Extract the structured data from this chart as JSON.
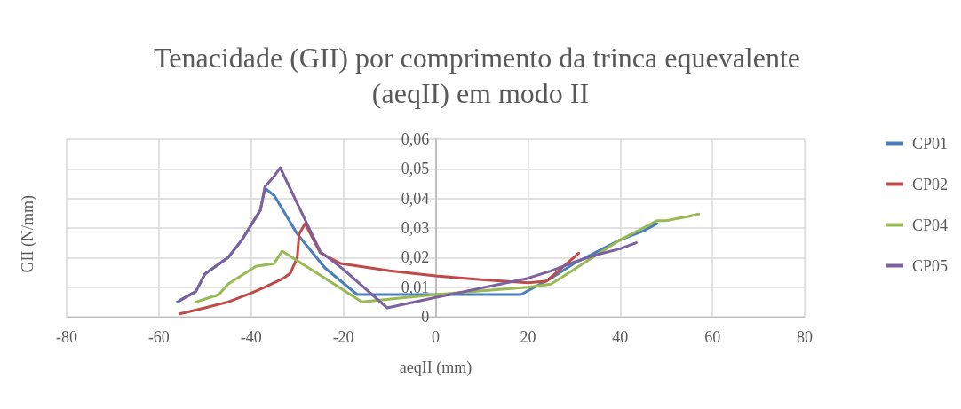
{
  "chart_data": {
    "type": "line",
    "title": "Tenacidade (GII) por comprimento da trinca equevalente (aeqII) em modo II",
    "xlabel": "aeqII (mm)",
    "ylabel": "GII (N/mm)",
    "xlim": [
      -80,
      80
    ],
    "xticks": [
      -80,
      -60,
      -40,
      -20,
      0,
      20,
      40,
      60,
      80
    ],
    "ylim": [
      0,
      0.06
    ],
    "yticks": [
      0,
      {
        "value": 0.01,
        "label": "0,01"
      },
      {
        "value": 0.02,
        "label": "0,02"
      },
      {
        "value": 0.03,
        "label": "0,03"
      },
      {
        "value": 0.04,
        "label": "0,04"
      },
      {
        "value": 0.05,
        "label": "0,05"
      },
      {
        "value": 0.06,
        "label": "0,06"
      }
    ],
    "grid": true,
    "legend": "right",
    "marker": "none",
    "line_style": "solid",
    "series": [
      {
        "name": "CP01",
        "color": "#4a7ebb",
        "x": [
          -56,
          -52,
          -50,
          -45,
          -42,
          -40,
          -38,
          -37,
          -35,
          -30,
          -24,
          -17,
          18.5,
          25,
          30,
          35,
          40,
          45,
          48
        ],
        "values": [
          0.005,
          0.0085,
          0.0145,
          0.02,
          0.026,
          0.031,
          0.036,
          0.0435,
          0.041,
          0.028,
          0.0165,
          0.0075,
          0.0075,
          0.013,
          0.018,
          0.022,
          0.026,
          0.029,
          0.0315
        ]
      },
      {
        "name": "CP02",
        "color": "#be4b48",
        "x": [
          -55.5,
          -50,
          -45,
          -40,
          -37,
          -33,
          -31.5,
          -30,
          -29.6,
          -28.3,
          -25,
          -20.6,
          -10,
          0,
          10,
          20,
          24,
          27,
          31
        ],
        "values": [
          0.001,
          0.003,
          0.005,
          0.008,
          0.01,
          0.013,
          0.0147,
          0.02,
          0.028,
          0.0315,
          0.0216,
          0.018,
          0.0155,
          0.0138,
          0.0125,
          0.0115,
          0.012,
          0.016,
          0.0215
        ]
      },
      {
        "name": "CP04",
        "color": "#98b954",
        "x": [
          -52,
          -47,
          -45,
          -42,
          -39,
          -35,
          -33.3,
          -26,
          -16,
          0,
          20,
          25,
          30,
          35,
          40,
          45,
          48,
          50,
          55,
          57
        ],
        "values": [
          0.005,
          0.0075,
          0.011,
          0.014,
          0.017,
          0.018,
          0.0222,
          0.015,
          0.005,
          0.0075,
          0.01,
          0.011,
          0.016,
          0.021,
          0.026,
          0.03,
          0.0325,
          0.0325,
          0.034,
          0.0347
        ]
      },
      {
        "name": "CP05",
        "color": "#7d60a0",
        "x": [
          -55.5,
          -52,
          -50,
          -45,
          -42,
          -40,
          -38,
          -37,
          -35,
          -33.7,
          -25,
          -20,
          -10.5,
          0,
          20,
          25,
          30,
          35,
          40,
          43.5
        ],
        "values": [
          0.0055,
          0.0085,
          0.0145,
          0.02,
          0.026,
          0.031,
          0.036,
          0.044,
          0.0475,
          0.0504,
          0.022,
          0.016,
          0.003,
          0.0065,
          0.013,
          0.0155,
          0.0185,
          0.021,
          0.023,
          0.025
        ]
      }
    ]
  }
}
